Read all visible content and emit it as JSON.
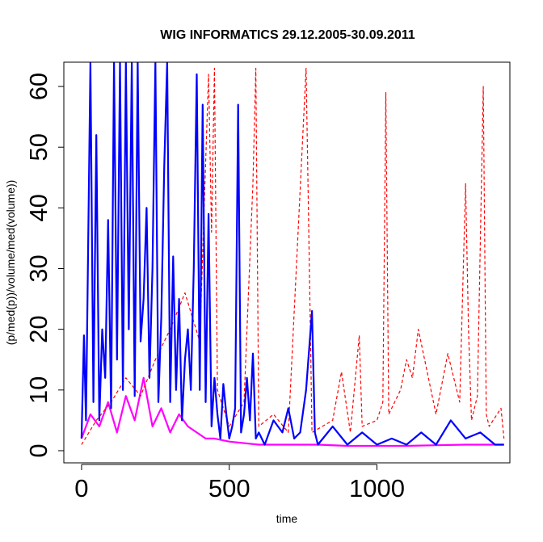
{
  "chart_data": {
    "type": "line",
    "title": "WIG INFORMATICS 29.12.2005-30.09.2011",
    "xlabel": "time",
    "ylabel": "(p/med(p))/volume/med(volume))",
    "xlim": [
      -60,
      1450
    ],
    "ylim": [
      -2,
      64
    ],
    "x_ticks": [
      0,
      500,
      1000
    ],
    "x_tick_labels": [
      "0",
      "500",
      "1000"
    ],
    "y_ticks": [
      0,
      10,
      20,
      30,
      40,
      50,
      60
    ],
    "y_tick_labels": [
      "0",
      "10",
      "20",
      "30",
      "40",
      "50",
      "60"
    ],
    "grid": false,
    "legend": "none",
    "series": [
      {
        "name": "p/med(p)",
        "color": "#ff00ff",
        "style": "solid",
        "x": [
          0,
          30,
          60,
          90,
          120,
          150,
          180,
          210,
          240,
          270,
          300,
          330,
          360,
          390,
          420,
          450,
          500,
          600,
          700,
          800,
          900,
          1000,
          1100,
          1200,
          1300,
          1400,
          1430
        ],
        "values": [
          2,
          6,
          4,
          8,
          3,
          9,
          5,
          12,
          4,
          7,
          3,
          6,
          4,
          3,
          2,
          2,
          1.5,
          1,
          1,
          1,
          0.8,
          0.8,
          0.8,
          0.9,
          1,
          1,
          1
        ]
      },
      {
        "name": "volume/med(volume)",
        "color": "#ff0000",
        "style": "dashed",
        "x": [
          0,
          50,
          100,
          150,
          200,
          250,
          300,
          350,
          400,
          430,
          440,
          450,
          460,
          500,
          550,
          580,
          590,
          600,
          650,
          700,
          760,
          770,
          780,
          850,
          880,
          910,
          940,
          950,
          1000,
          1020,
          1030,
          1040,
          1080,
          1100,
          1120,
          1140,
          1200,
          1240,
          1280,
          1300,
          1310,
          1320,
          1340,
          1360,
          1370,
          1380,
          1420,
          1430
        ],
        "values": [
          1,
          5,
          8,
          12,
          9,
          15,
          20,
          26,
          18,
          62,
          36,
          63,
          10,
          4,
          8,
          44,
          63,
          4,
          6,
          3,
          63,
          34,
          3,
          5,
          13,
          3,
          19,
          4,
          5,
          8,
          59,
          6,
          10,
          15,
          12,
          20,
          6,
          16,
          8,
          44,
          20,
          5,
          9,
          60,
          6,
          4,
          7,
          2
        ]
      },
      {
        "name": "(p/med(p))/volume/med(volume))",
        "color": "#0000ff",
        "style": "solid",
        "x": [
          0,
          8,
          15,
          20,
          30,
          40,
          50,
          60,
          70,
          80,
          90,
          100,
          110,
          120,
          130,
          140,
          150,
          160,
          170,
          180,
          190,
          200,
          210,
          220,
          230,
          240,
          250,
          260,
          270,
          280,
          290,
          300,
          310,
          320,
          330,
          340,
          350,
          360,
          370,
          380,
          390,
          400,
          410,
          420,
          430,
          440,
          450,
          460,
          470,
          480,
          490,
          500,
          510,
          520,
          530,
          540,
          550,
          560,
          570,
          580,
          590,
          600,
          620,
          650,
          680,
          700,
          720,
          740,
          760,
          780,
          790,
          800,
          850,
          900,
          950,
          1000,
          1050,
          1100,
          1150,
          1200,
          1250,
          1300,
          1350,
          1400,
          1430
        ],
        "values": [
          2,
          19,
          5,
          24,
          64,
          8,
          52,
          5,
          20,
          12,
          38,
          7,
          64,
          15,
          64,
          10,
          64,
          20,
          64,
          9,
          64,
          18,
          25,
          40,
          12,
          30,
          64,
          8,
          22,
          47,
          64,
          8,
          32,
          10,
          25,
          5,
          15,
          20,
          10,
          30,
          62,
          10,
          57,
          8,
          39,
          4,
          12,
          6,
          2,
          11,
          6,
          2,
          4,
          7,
          57,
          3,
          6,
          12,
          5,
          16,
          2,
          3,
          1,
          5,
          3,
          7,
          2,
          3,
          10,
          23,
          3,
          1,
          4,
          1,
          3,
          1,
          2,
          1,
          3,
          1,
          5,
          2,
          3,
          1,
          1
        ]
      }
    ]
  }
}
